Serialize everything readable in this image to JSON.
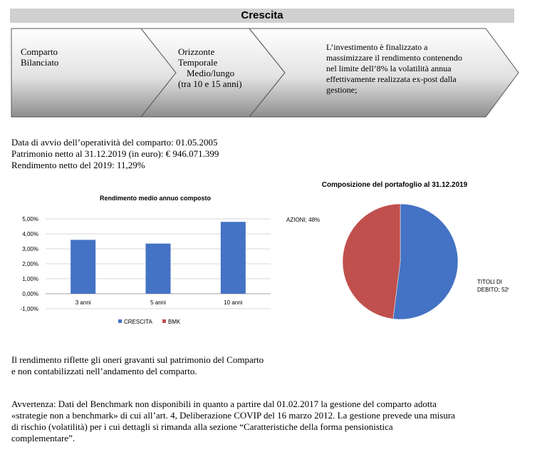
{
  "header": {
    "title": "Crescita"
  },
  "segments": {
    "s1": [
      "Comparto",
      "Bilanciato"
    ],
    "s2": [
      "Orizzonte",
      "Temporale",
      "Medio/lungo",
      "(tra 10 e 15 anni)"
    ],
    "s3": [
      "L’investimento è finalizzato a",
      "massimizzare il rendimento contenendo",
      "nel limite dell’8% la volatilità annua",
      "effettivamente realizzata ex-post dalla",
      "gestione;"
    ]
  },
  "info": {
    "start_date": "Data di avvio dell’operatività del comparto: 01.05.2005",
    "net_assets": "Patrimonio netto al 31.12.2019 (in euro): € 946.071.399",
    "net_return": "Rendimento netto del 2019: 11,29%"
  },
  "chart_data": [
    {
      "type": "bar",
      "title": "Rendimento medio annuo composto",
      "categories": [
        "3 anni",
        "5 anni",
        "10 anni"
      ],
      "series": [
        {
          "name": "CRESCITA",
          "values": [
            3.6,
            3.35,
            4.8
          ]
        },
        {
          "name": "BMK",
          "values": [
            null,
            null,
            null
          ]
        }
      ],
      "ylim": [
        -1.0,
        5.0
      ],
      "yticks": [
        "-1,00%",
        "0,00%",
        "1,00%",
        "2,00%",
        "3,00%",
        "4,00%",
        "5,00%"
      ],
      "ytick_values": [
        -1,
        0,
        1,
        2,
        3,
        4,
        5
      ],
      "grid": true,
      "legend": "bottom",
      "colors": {
        "CRESCITA": "#4472c4",
        "BMK": "#c0504d"
      }
    },
    {
      "type": "pie",
      "title": "Composizione del portafoglio al 31.12.2019",
      "slices": [
        {
          "label_lines": [
            "TITOLI DI",
            "DEBITO; 52%"
          ],
          "value": 52,
          "color": "#4472c4"
        },
        {
          "label_lines": [
            "AZIONI; 48%"
          ],
          "value": 48,
          "color": "#c0504d"
        }
      ]
    }
  ],
  "notes": {
    "p1": [
      "Il rendimento riflette gli oneri gravanti sul patrimonio del Comparto",
      "e non contabilizzati nell’andamento del comparto."
    ],
    "p2": [
      "Avvertenza: Dati del Benchmark non disponibili in quanto a partire dal 01.02.2017 la gestione del comparto adotta",
      "«strategie non a benchmark» di cui all’art. 4, Deliberazione COVIP del 16 marzo 2012. La gestione prevede una misura",
      "di rischio (volatilità) per i cui dettagli si rimanda alla sezione “Caratteristiche della forma pensionistica",
      "complementare”."
    ]
  }
}
